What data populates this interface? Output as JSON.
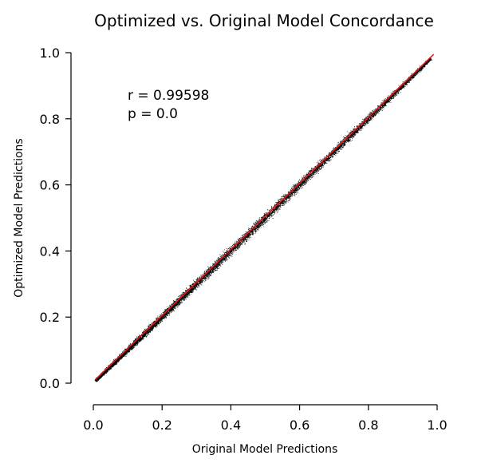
{
  "chart_data": {
    "type": "scatter",
    "title": "Optimized vs. Original Model Concordance",
    "xlabel": "Original Model Predictions",
    "ylabel": "Optimized Model Predictions",
    "xlim": [
      0.0,
      1.0
    ],
    "ylim": [
      0.0,
      1.0
    ],
    "x_ticks": [
      "0.0",
      "0.2",
      "0.4",
      "0.6",
      "0.8",
      "1.0"
    ],
    "y_ticks": [
      "0.0",
      "0.2",
      "0.4",
      "0.6",
      "0.8",
      "1.0"
    ],
    "grid": false,
    "annotations": [
      "r = 0.99598",
      "p = 0.0"
    ],
    "colors": {
      "points": "#000000",
      "fit_line": "#e31a1c"
    },
    "fit_line": {
      "x": [
        0.005,
        0.99
      ],
      "y": [
        0.01,
        0.995
      ]
    },
    "series": [
      {
        "values_summary": "dense cloud of many points tightly distributed along the identity line from about (0.005, 0.0) to (0.99, 1.0), narrow near the ends and widest (about ±0.05) near the middle",
        "x": [
          0.01,
          0.05,
          0.1,
          0.15,
          0.2,
          0.25,
          0.3,
          0.35,
          0.4,
          0.45,
          0.5,
          0.55,
          0.6,
          0.65,
          0.7,
          0.75,
          0.8,
          0.85,
          0.9,
          0.95,
          0.98
        ],
        "y": [
          0.015,
          0.055,
          0.1,
          0.15,
          0.2,
          0.25,
          0.3,
          0.35,
          0.4,
          0.45,
          0.5,
          0.55,
          0.6,
          0.65,
          0.7,
          0.75,
          0.8,
          0.85,
          0.9,
          0.95,
          0.98
        ]
      }
    ]
  }
}
